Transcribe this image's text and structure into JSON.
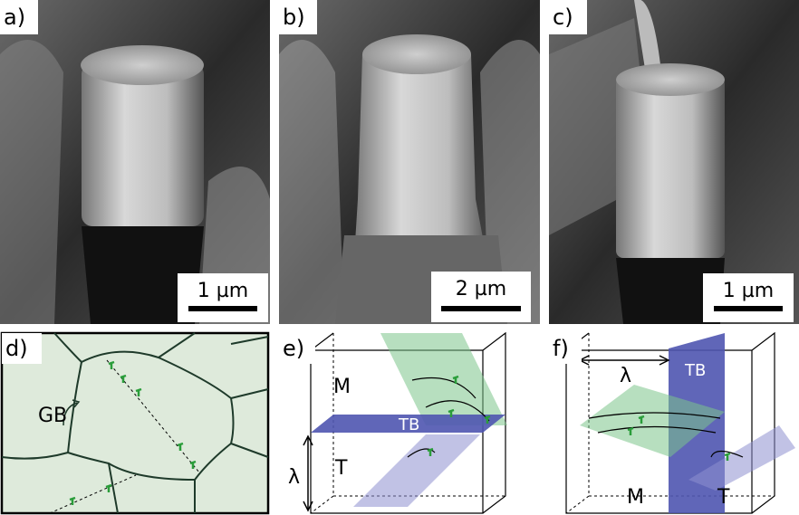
{
  "panels": [
    {
      "label": "a)",
      "scale_bar": "1 µm"
    },
    {
      "label": "b)",
      "scale_bar": "2 µm"
    },
    {
      "label": "c)",
      "scale_bar": "1 µm"
    },
    {
      "label": "d)",
      "annotations": [
        "GB"
      ]
    },
    {
      "label": "e)",
      "annotations": [
        "M",
        "TB",
        "λ",
        "T"
      ]
    },
    {
      "label": "f)",
      "annotations": [
        "λ",
        "TB",
        "M",
        "T"
      ]
    }
  ]
}
